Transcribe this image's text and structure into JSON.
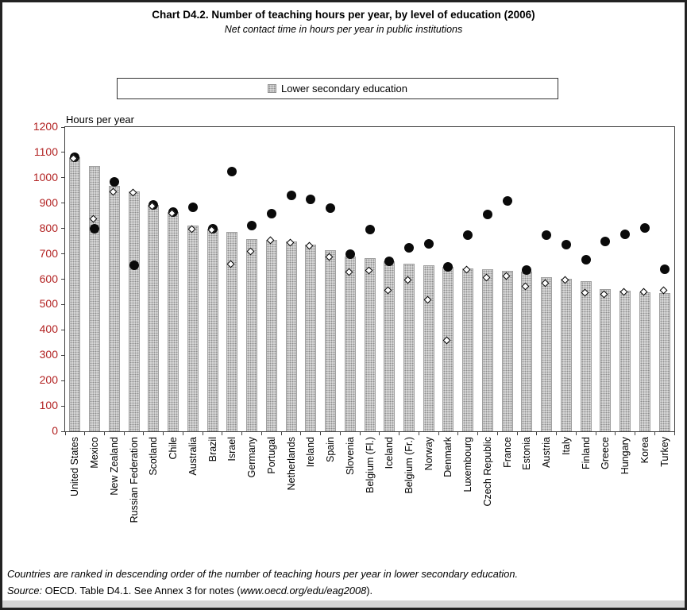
{
  "title": "Chart D4.2. Number of teaching hours per year, by level of education (2006)",
  "subtitle": "Net contact time in hours per year in public institutions",
  "legend": {
    "items": [
      {
        "label": "Lower secondary education",
        "swatch": "dotted-gray-bar"
      }
    ]
  },
  "axis": {
    "y_title": "Hours per year"
  },
  "footer": {
    "note": "Countries are ranked in descending order of the number of teaching hours per year in lower secondary education.",
    "source_label": "Source:",
    "source_text": " OECD. Table D4.1. See Annex 3 for notes (",
    "source_link": "www.oecd.org/edu/eag2008",
    "source_close": ")."
  },
  "colors": {
    "y_tick_labels": "#b22222",
    "bar_fill": "#e0e0e0",
    "bar_dots": "#8c8c8c",
    "bar_border": "#9e9e9e",
    "circle_marker": "#0a0a0a",
    "diamond_marker_fill": "#ffffff",
    "diamond_marker_border": "#000000"
  },
  "chart_data": {
    "type": "bar",
    "title": "Chart D4.2. Number of teaching hours per year, by level of education (2006)",
    "subtitle": "Net contact time in hours per year in public institutions",
    "ylabel": "Hours per year",
    "xlabel": "",
    "ylim": [
      0,
      1200
    ],
    "ytick_step": 100,
    "grid": false,
    "legend_position": "top",
    "categories": [
      "United States",
      "Mexico",
      "New Zealand",
      "Russian Federation",
      "Scotland",
      "Chile",
      "Australia",
      "Brazil",
      "Israel",
      "Germany",
      "Portugal",
      "Netherlands",
      "Ireland",
      "Spain",
      "Slovenia",
      "Belgium (Fl.)",
      "Iceland",
      "Belgium (Fr.)",
      "Norway",
      "Denmark",
      "Luxembourg",
      "Czech Republic",
      "France",
      "Estonia",
      "Austria",
      "Italy",
      "Finland",
      "Greece",
      "Hungary",
      "Korea",
      "Turkey"
    ],
    "series": [
      {
        "name": "Lower secondary education",
        "mark": "bar",
        "values": [
          1080,
          1047,
          968,
          946,
          893,
          864,
          810,
          800,
          788,
          758,
          755,
          750,
          735,
          713,
          690,
          684,
          671,
          662,
          654,
          648,
          642,
          640,
          632,
          630,
          607,
          601,
          592,
          560,
          555,
          548,
          545
        ]
      },
      {
        "name": "black-circle-marker",
        "mark": "circle",
        "values": [
          1080,
          800,
          985,
          656,
          893,
          864,
          884,
          800,
          1025,
          810,
          860,
          930,
          915,
          880,
          700,
          797,
          671,
          724,
          741,
          648,
          774,
          854,
          910,
          635,
          774,
          735,
          677,
          750,
          777,
          802,
          639
        ]
      },
      {
        "name": "white-diamond-marker",
        "mark": "diamond",
        "values": [
          1080,
          843,
          950,
          946,
          893,
          864,
          803,
          800,
          665,
          715,
          757,
          750,
          735,
          693,
          633,
          638,
          560,
          603,
          523,
          364,
          642,
          611,
          618,
          578,
          589,
          601,
          550,
          545,
          555,
          555,
          560
        ]
      }
    ]
  }
}
